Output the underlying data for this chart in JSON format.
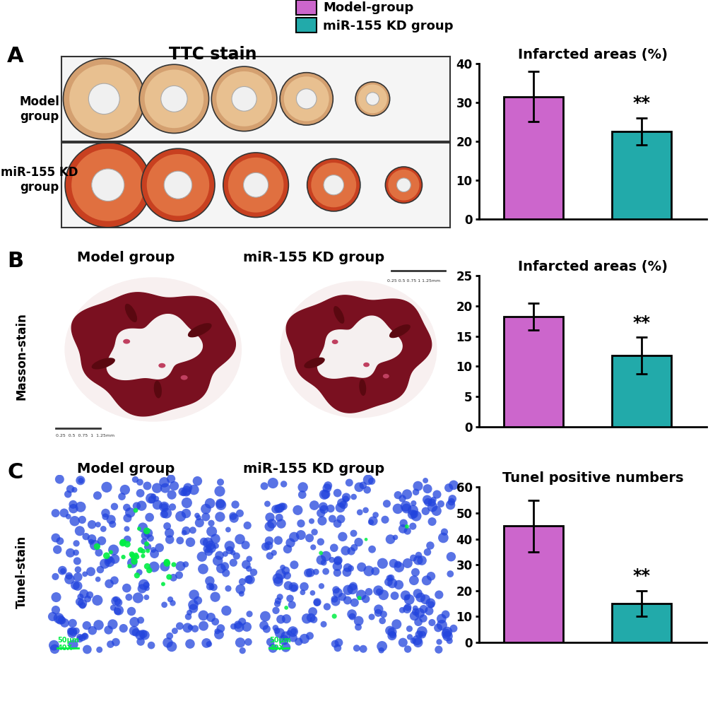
{
  "legend_labels": [
    "Model-group",
    "miR-155 KD group"
  ],
  "legend_colors": [
    "#CC66CC",
    "#22AAAA"
  ],
  "panel_A_title": "TTC stain",
  "panel_A_bar_title": "Infarcted areas (%)",
  "panel_A_values": [
    31.5,
    22.5
  ],
  "panel_A_errors": [
    6.5,
    3.5
  ],
  "panel_A_ylim": [
    0,
    40
  ],
  "panel_A_yticks": [
    0,
    10,
    20,
    30,
    40
  ],
  "panel_B_bar_title": "Infarcted areas (%)",
  "panel_B_values": [
    18.2,
    11.8
  ],
  "panel_B_errors": [
    2.2,
    3.0
  ],
  "panel_B_ylim": [
    0,
    25
  ],
  "panel_B_yticks": [
    0,
    5,
    10,
    15,
    20,
    25
  ],
  "panel_C_bar_title": "Tunel positive numbers",
  "panel_C_values": [
    45.0,
    15.0
  ],
  "panel_C_errors": [
    10.0,
    5.0
  ],
  "panel_C_ylim": [
    0,
    60
  ],
  "panel_C_yticks": [
    0,
    10,
    20,
    30,
    40,
    50,
    60
  ],
  "bar_colors": [
    "#CC66CC",
    "#22AAAA"
  ],
  "bar_edge_color": "#000000",
  "bar_width": 0.55,
  "significance_label": "**",
  "fig_bg_color": "#ffffff",
  "panel_A_label_model": "Model\ngroup",
  "panel_A_label_mir": "miR-155 KD\ngroup",
  "panel_B_label_model": "Model group",
  "panel_B_label_mir": "miR-155 KD group",
  "panel_C_label_model": "Model group",
  "panel_C_label_mir": "miR-155 KD group",
  "stain_B_label": "Masson-stain",
  "stain_C_label": "Tunel-stain"
}
